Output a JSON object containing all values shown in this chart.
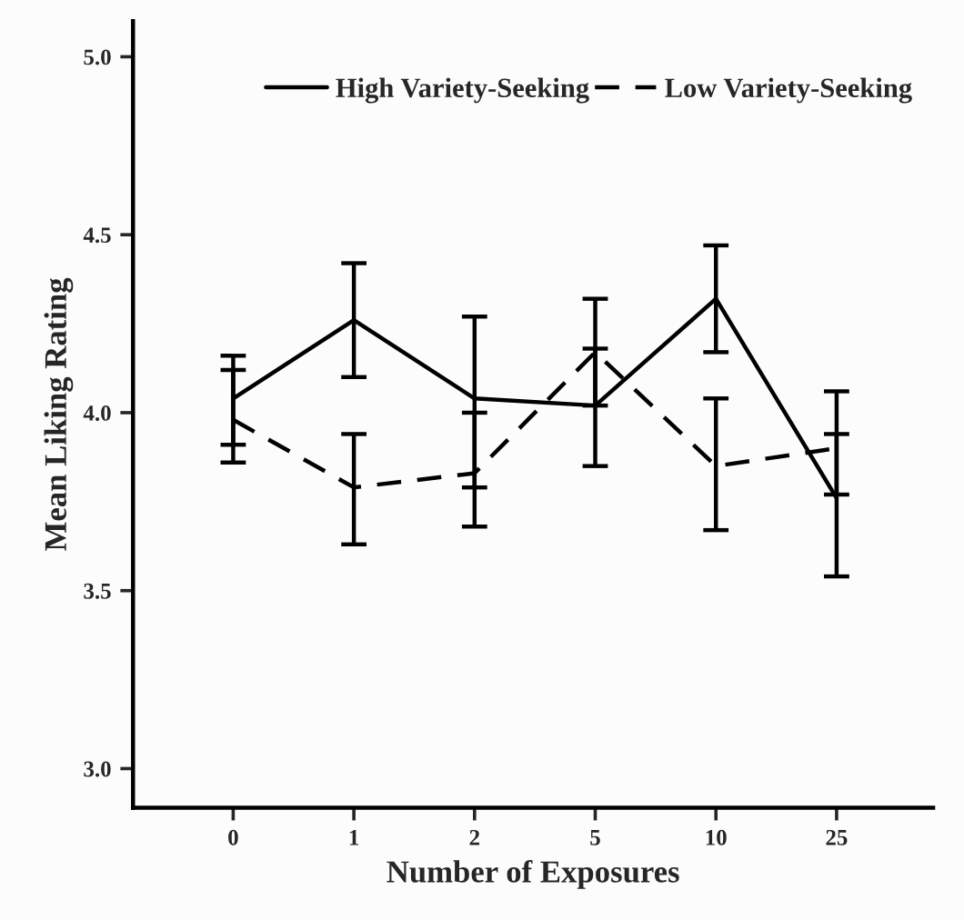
{
  "chart_data": {
    "type": "line",
    "xlabel": "Number of Exposures",
    "ylabel": "Mean Liking Rating",
    "categories": [
      "0",
      "1",
      "2",
      "5",
      "10",
      "25"
    ],
    "series": [
      {
        "name": "High Variety-Seeking",
        "color": "#000000",
        "line_style": "solid",
        "values": [
          4.04,
          4.26,
          4.04,
          4.02,
          4.32,
          3.76
        ],
        "errors": [
          [
            3.91,
            4.16
          ],
          [
            4.1,
            4.42
          ],
          [
            3.79,
            4.27
          ],
          [
            3.85,
            4.18
          ],
          [
            4.17,
            4.47
          ],
          [
            3.54,
            3.94
          ]
        ]
      },
      {
        "name": "Low Variety-Seeking",
        "color": "#000000",
        "line_style": "dashed",
        "values": [
          3.98,
          3.79,
          3.83,
          4.17,
          3.85,
          3.9
        ],
        "errors": [
          [
            3.86,
            4.12
          ],
          [
            3.63,
            3.94
          ],
          [
            3.68,
            4.0
          ],
          [
            4.02,
            4.32
          ],
          [
            3.67,
            4.04
          ],
          [
            3.77,
            4.06
          ]
        ]
      }
    ],
    "ylim": [
      2.89,
      5.1
    ],
    "yticks": [
      {
        "value": 3.0,
        "label": "3.0"
      },
      {
        "value": 3.5,
        "label": "3.5"
      },
      {
        "value": 4.0,
        "label": "4.0"
      },
      {
        "value": 4.5,
        "label": "4.5"
      },
      {
        "value": 5.0,
        "label": "5.0"
      }
    ],
    "grid": false,
    "legend": "top",
    "marker": "none"
  }
}
